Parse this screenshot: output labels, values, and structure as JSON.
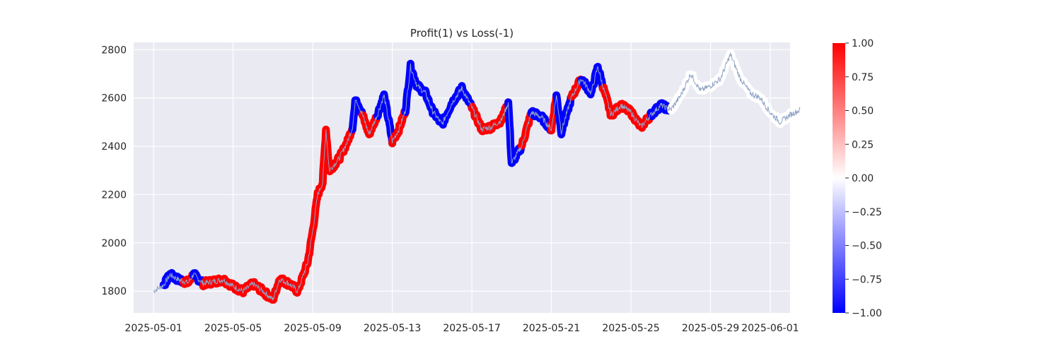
{
  "chart_data": {
    "type": "scatter",
    "title": "Profit(1) vs Loss(-1)",
    "xlabel": "",
    "ylabel": "",
    "x_ticks": [
      "2025-05-01",
      "2025-05-05",
      "2025-05-09",
      "2025-05-13",
      "2025-05-17",
      "2025-05-21",
      "2025-05-25",
      "2025-05-29",
      "2025-06-01"
    ],
    "y_ticks": [
      1800,
      2000,
      2200,
      2400,
      2600,
      2800
    ],
    "xlim": [
      "2025-04-30T00:00",
      "2025-06-02T00:00"
    ],
    "ylim": [
      1710,
      2830
    ],
    "grid": true,
    "price_line": {
      "color": "#8fa3c6",
      "points": [
        [
          "2025-05-01T00:00",
          1800
        ],
        [
          "2025-05-01T12:00",
          1825
        ],
        [
          "2025-05-01T20:00",
          1868
        ],
        [
          "2025-05-02T06:00",
          1848
        ],
        [
          "2025-05-02T18:00",
          1835
        ],
        [
          "2025-05-03T00:00",
          1870
        ],
        [
          "2025-05-03T12:00",
          1832
        ],
        [
          "2025-05-04T00:00",
          1840
        ],
        [
          "2025-05-04T12:00",
          1848
        ],
        [
          "2025-05-05T00:00",
          1820
        ],
        [
          "2025-05-05T12:00",
          1800
        ],
        [
          "2025-05-06T00:00",
          1830
        ],
        [
          "2025-05-06T12:00",
          1800
        ],
        [
          "2025-05-07T00:00",
          1765
        ],
        [
          "2025-05-07T08:00",
          1850
        ],
        [
          "2025-05-07T20:00",
          1830
        ],
        [
          "2025-05-08T06:00",
          1800
        ],
        [
          "2025-05-08T18:00",
          1920
        ],
        [
          "2025-05-09T00:00",
          2050
        ],
        [
          "2025-05-09T06:00",
          2200
        ],
        [
          "2025-05-09T12:00",
          2250
        ],
        [
          "2025-05-09T16:00",
          2470
        ],
        [
          "2025-05-09T20:00",
          2300
        ],
        [
          "2025-05-10T08:00",
          2350
        ],
        [
          "2025-05-10T18:00",
          2420
        ],
        [
          "2025-05-11T00:00",
          2480
        ],
        [
          "2025-05-11T04:00",
          2600
        ],
        [
          "2025-05-11T12:00",
          2530
        ],
        [
          "2025-05-11T20:00",
          2450
        ],
        [
          "2025-05-12T06:00",
          2530
        ],
        [
          "2025-05-12T14:00",
          2610
        ],
        [
          "2025-05-12T20:00",
          2500
        ],
        [
          "2025-05-13T00:00",
          2420
        ],
        [
          "2025-05-13T08:00",
          2470
        ],
        [
          "2025-05-13T16:00",
          2550
        ],
        [
          "2025-05-13T22:00",
          2730
        ],
        [
          "2025-05-14T06:00",
          2650
        ],
        [
          "2025-05-14T16:00",
          2620
        ],
        [
          "2025-05-15T00:00",
          2550
        ],
        [
          "2025-05-15T12:00",
          2490
        ],
        [
          "2025-05-16T00:00",
          2580
        ],
        [
          "2025-05-16T12:00",
          2640
        ],
        [
          "2025-05-17T00:00",
          2560
        ],
        [
          "2025-05-17T12:00",
          2470
        ],
        [
          "2025-05-18T00:00",
          2480
        ],
        [
          "2025-05-18T12:00",
          2510
        ],
        [
          "2025-05-18T20:00",
          2580
        ],
        [
          "2025-05-19T00:00",
          2330
        ],
        [
          "2025-05-19T12:00",
          2400
        ],
        [
          "2025-05-20T00:00",
          2540
        ],
        [
          "2025-05-20T12:00",
          2520
        ],
        [
          "2025-05-21T00:00",
          2470
        ],
        [
          "2025-05-21T06:00",
          2610
        ],
        [
          "2025-05-21T12:00",
          2460
        ],
        [
          "2025-05-22T00:00",
          2600
        ],
        [
          "2025-05-22T12:00",
          2680
        ],
        [
          "2025-05-23T00:00",
          2620
        ],
        [
          "2025-05-23T08:00",
          2730
        ],
        [
          "2025-05-23T14:00",
          2650
        ],
        [
          "2025-05-24T00:00",
          2530
        ],
        [
          "2025-05-24T12:00",
          2570
        ],
        [
          "2025-05-25T00:00",
          2540
        ],
        [
          "2025-05-25T12:00",
          2480
        ],
        [
          "2025-05-26T00:00",
          2530
        ],
        [
          "2025-05-26T12:00",
          2570
        ],
        [
          "2025-05-27T00:00",
          2550
        ],
        [
          "2025-05-27T12:00",
          2610
        ],
        [
          "2025-05-28T00:00",
          2700
        ],
        [
          "2025-05-28T12:00",
          2630
        ],
        [
          "2025-05-29T00:00",
          2650
        ],
        [
          "2025-05-29T12:00",
          2680
        ],
        [
          "2025-05-30T00:00",
          2780
        ],
        [
          "2025-05-30T12:00",
          2680
        ],
        [
          "2025-05-31T00:00",
          2620
        ],
        [
          "2025-05-31T12:00",
          2600
        ],
        [
          "2025-06-01T00:00",
          2540
        ],
        [
          "2025-06-01T12:00",
          2500
        ],
        [
          "2025-06-02T00:00",
          2530
        ],
        [
          "2025-06-02T12:00",
          2550
        ]
      ]
    },
    "signals": {
      "colormap": "bwr",
      "clim": [
        -1,
        1
      ],
      "segments": [
        {
          "from": "2025-05-01T12:00",
          "to": "2025-05-02T12:00",
          "value": -1
        },
        {
          "from": "2025-05-02T12:00",
          "to": "2025-05-03T00:00",
          "value": 1
        },
        {
          "from": "2025-05-03T00:00",
          "to": "2025-05-03T12:00",
          "value": -1
        },
        {
          "from": "2025-05-03T12:00",
          "to": "2025-05-11T00:00",
          "value": 1
        },
        {
          "from": "2025-05-11T00:00",
          "to": "2025-05-11T12:00",
          "value": -1
        },
        {
          "from": "2025-05-11T12:00",
          "to": "2025-05-12T06:00",
          "value": 1
        },
        {
          "from": "2025-05-12T06:00",
          "to": "2025-05-13T00:00",
          "value": -1
        },
        {
          "from": "2025-05-13T00:00",
          "to": "2025-05-13T16:00",
          "value": 1
        },
        {
          "from": "2025-05-13T16:00",
          "to": "2025-05-17T00:00",
          "value": -1
        },
        {
          "from": "2025-05-17T00:00",
          "to": "2025-05-18T20:00",
          "value": 1
        },
        {
          "from": "2025-05-18T20:00",
          "to": "2025-05-19T12:00",
          "value": -1
        },
        {
          "from": "2025-05-19T12:00",
          "to": "2025-05-20T00:00",
          "value": 1
        },
        {
          "from": "2025-05-20T00:00",
          "to": "2025-05-21T00:00",
          "value": -1
        },
        {
          "from": "2025-05-21T00:00",
          "to": "2025-05-21T06:00",
          "value": 1
        },
        {
          "from": "2025-05-21T06:00",
          "to": "2025-05-22T00:00",
          "value": -1
        },
        {
          "from": "2025-05-22T00:00",
          "to": "2025-05-22T12:00",
          "value": 1
        },
        {
          "from": "2025-05-22T12:00",
          "to": "2025-05-23T14:00",
          "value": -1
        },
        {
          "from": "2025-05-23T14:00",
          "to": "2025-05-26T00:00",
          "value": 1
        },
        {
          "from": "2025-05-26T00:00",
          "to": "2025-05-27T00:00",
          "value": -1
        },
        {
          "from": "2025-05-27T00:00",
          "to": "2025-06-02T00:00",
          "value": 0
        }
      ]
    },
    "colorbar": {
      "ticks": [
        "1.00",
        "0.75",
        "0.50",
        "0.25",
        "0.00",
        "−0.25",
        "−0.50",
        "−0.75",
        "−1.00"
      ],
      "min_color": "#0000ff",
      "mid_color": "#ffffff",
      "max_color": "#ff0000"
    },
    "colors": {
      "plot_background": "#eaeaf2",
      "grid": "#ffffff",
      "text": "#262626"
    }
  }
}
